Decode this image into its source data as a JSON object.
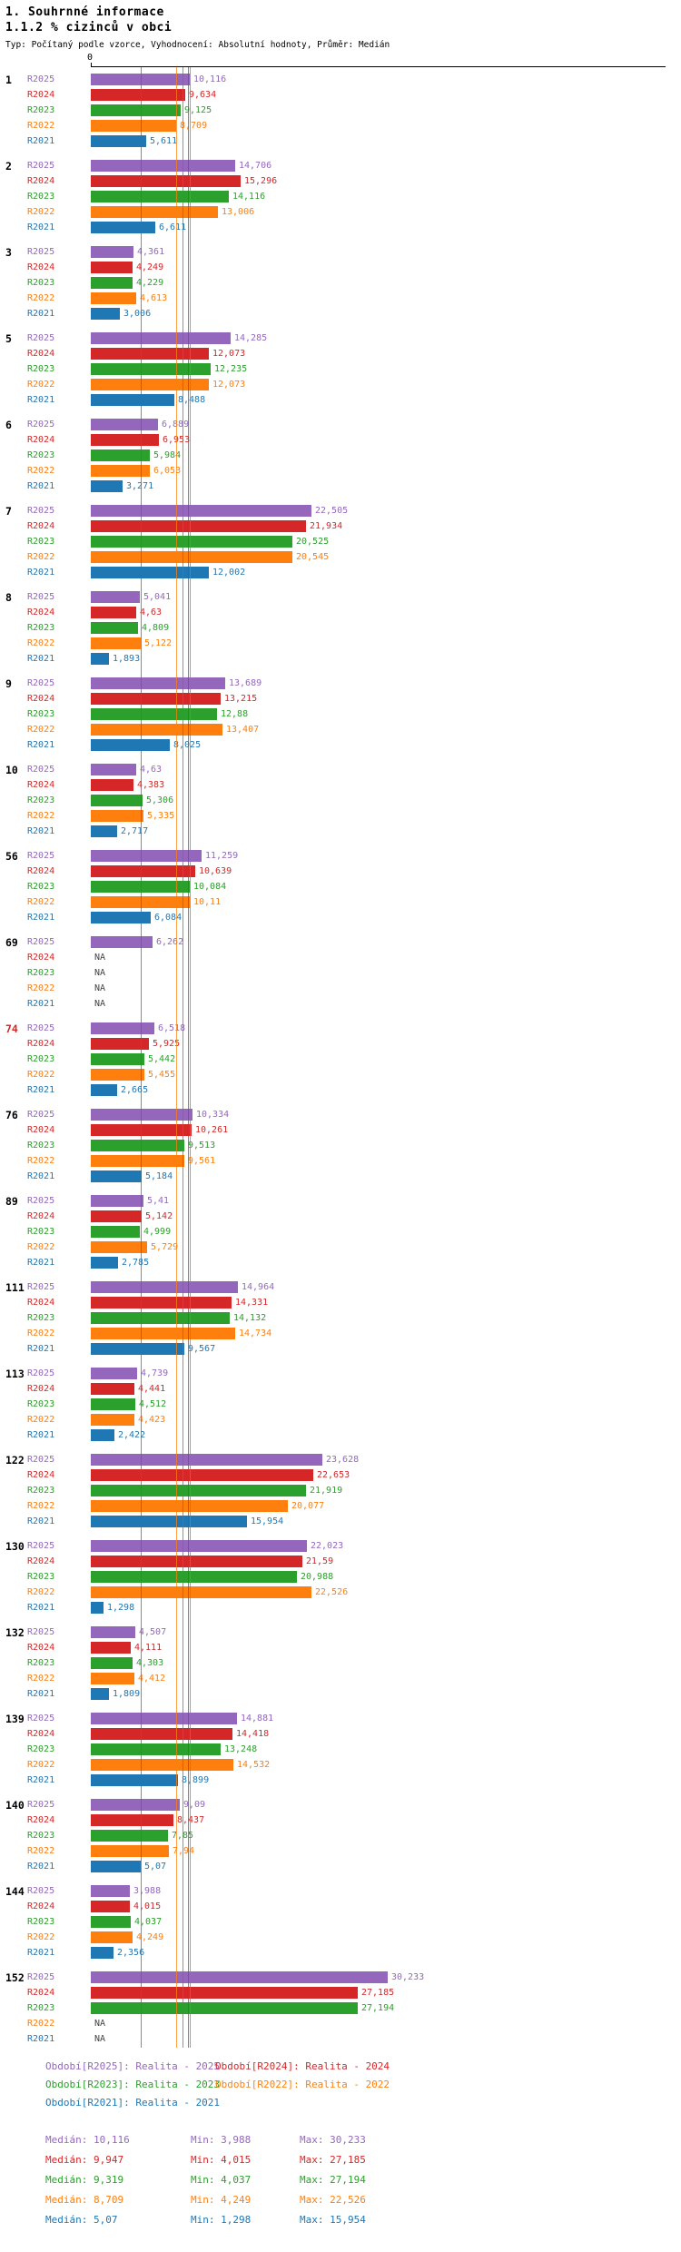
{
  "header": {
    "title": "1. Souhrnné informace",
    "subtitle": "1.1.2 % cizinců v obci",
    "meta": "Typ: Počítaný podle vzorce, Vyhodnocení: Absolutní hodnoty, Průměr: Medián"
  },
  "chart_data": {
    "type": "bar",
    "orientation": "horizontal",
    "axis_zero_label": "0",
    "na_color": "#444444",
    "series": [
      {
        "id": "R2025",
        "color": "#9467bd",
        "median": "10,116"
      },
      {
        "id": "R2024",
        "color": "#d62728",
        "median": "9,947"
      },
      {
        "id": "R2023",
        "color": "#2ca02c",
        "median": "9,319"
      },
      {
        "id": "R2022",
        "color": "#ff7f0e",
        "median": "8,709"
      },
      {
        "id": "R2021",
        "color": "#1f77b4",
        "median": "5,07"
      }
    ],
    "groups": [
      {
        "id": "1",
        "color": "#000000",
        "values": [
          "10,116",
          "9,634",
          "9,125",
          "8,709",
          "5,611"
        ]
      },
      {
        "id": "2",
        "color": "#000000",
        "values": [
          "14,706",
          "15,296",
          "14,116",
          "13,006",
          "6,611"
        ]
      },
      {
        "id": "3",
        "color": "#000000",
        "values": [
          "4,361",
          "4,249",
          "4,229",
          "4,613",
          "3,006"
        ]
      },
      {
        "id": "5",
        "color": "#000000",
        "values": [
          "14,285",
          "12,073",
          "12,235",
          "12,073",
          "8,488"
        ]
      },
      {
        "id": "6",
        "color": "#000000",
        "values": [
          "6,889",
          "6,953",
          "5,984",
          "6,053",
          "3,271"
        ]
      },
      {
        "id": "7",
        "color": "#000000",
        "values": [
          "22,505",
          "21,934",
          "20,525",
          "20,545",
          "12,002"
        ]
      },
      {
        "id": "8",
        "color": "#000000",
        "values": [
          "5,041",
          "4,63",
          "4,809",
          "5,122",
          "1,893"
        ]
      },
      {
        "id": "9",
        "color": "#000000",
        "values": [
          "13,689",
          "13,215",
          "12,88",
          "13,407",
          "8,025"
        ]
      },
      {
        "id": "10",
        "color": "#000000",
        "values": [
          "4,63",
          "4,383",
          "5,306",
          "5,335",
          "2,717"
        ]
      },
      {
        "id": "56",
        "color": "#000000",
        "values": [
          "11,259",
          "10,639",
          "10,084",
          "10,11",
          "6,084"
        ]
      },
      {
        "id": "69",
        "color": "#000000",
        "values": [
          "6,262",
          "NA",
          "NA",
          "NA",
          "NA"
        ]
      },
      {
        "id": "74",
        "color": "#d62728",
        "values": [
          "6,518",
          "5,925",
          "5,442",
          "5,455",
          "2,665"
        ]
      },
      {
        "id": "76",
        "color": "#000000",
        "values": [
          "10,334",
          "10,261",
          "9,513",
          "9,561",
          "5,184"
        ]
      },
      {
        "id": "89",
        "color": "#000000",
        "values": [
          "5,41",
          "5,142",
          "4,999",
          "5,729",
          "2,785"
        ]
      },
      {
        "id": "111",
        "color": "#000000",
        "values": [
          "14,964",
          "14,331",
          "14,132",
          "14,734",
          "9,567"
        ]
      },
      {
        "id": "113",
        "color": "#000000",
        "values": [
          "4,739",
          "4,441",
          "4,512",
          "4,423",
          "2,422"
        ]
      },
      {
        "id": "122",
        "color": "#000000",
        "values": [
          "23,628",
          "22,653",
          "21,919",
          "20,077",
          "15,954"
        ]
      },
      {
        "id": "130",
        "color": "#000000",
        "values": [
          "22,023",
          "21,59",
          "20,988",
          "22,526",
          "1,298"
        ]
      },
      {
        "id": "132",
        "color": "#000000",
        "values": [
          "4,507",
          "4,111",
          "4,303",
          "4,412",
          "1,809"
        ]
      },
      {
        "id": "139",
        "color": "#000000",
        "values": [
          "14,881",
          "14,418",
          "13,248",
          "14,532",
          "8,899"
        ]
      },
      {
        "id": "140",
        "color": "#000000",
        "values": [
          "9,09",
          "8,437",
          "7,85",
          "7,94",
          "5,07"
        ]
      },
      {
        "id": "144",
        "color": "#000000",
        "values": [
          "3,988",
          "4,015",
          "4,037",
          "4,249",
          "2,356"
        ]
      },
      {
        "id": "152",
        "color": "#000000",
        "values": [
          "30,233",
          "27,185",
          "27,194",
          "NA",
          "NA"
        ]
      }
    ]
  },
  "legend": {
    "col1": [
      {
        "series": "R2025",
        "label": "Období[R2025]: Realita - 2025"
      },
      {
        "series": "R2023",
        "label": "Období[R2023]: Realita - 2023"
      },
      {
        "series": "R2021",
        "label": "Období[R2021]: Realita - 2021"
      }
    ],
    "col2": [
      {
        "series": "R2024",
        "label": "Období[R2024]: Realita - 2024"
      },
      {
        "series": "R2022",
        "label": "Období[R2022]: Realita - 2022"
      }
    ]
  },
  "stats": [
    {
      "series": "R2025",
      "median": "Medián: 10,116",
      "min": "Min: 3,988",
      "max": "Max: 30,233"
    },
    {
      "series": "R2024",
      "median": "Medián: 9,947",
      "min": "Min: 4,015",
      "max": "Max: 27,185"
    },
    {
      "series": "R2023",
      "median": "Medián: 9,319",
      "min": "Min: 4,037",
      "max": "Max: 27,194"
    },
    {
      "series": "R2022",
      "median": "Medián: 8,709",
      "min": "Min: 4,249",
      "max": "Max: 22,526"
    },
    {
      "series": "R2021",
      "median": "Medián: 5,07",
      "min": "Min: 1,298",
      "max": "Max: 15,954"
    }
  ]
}
